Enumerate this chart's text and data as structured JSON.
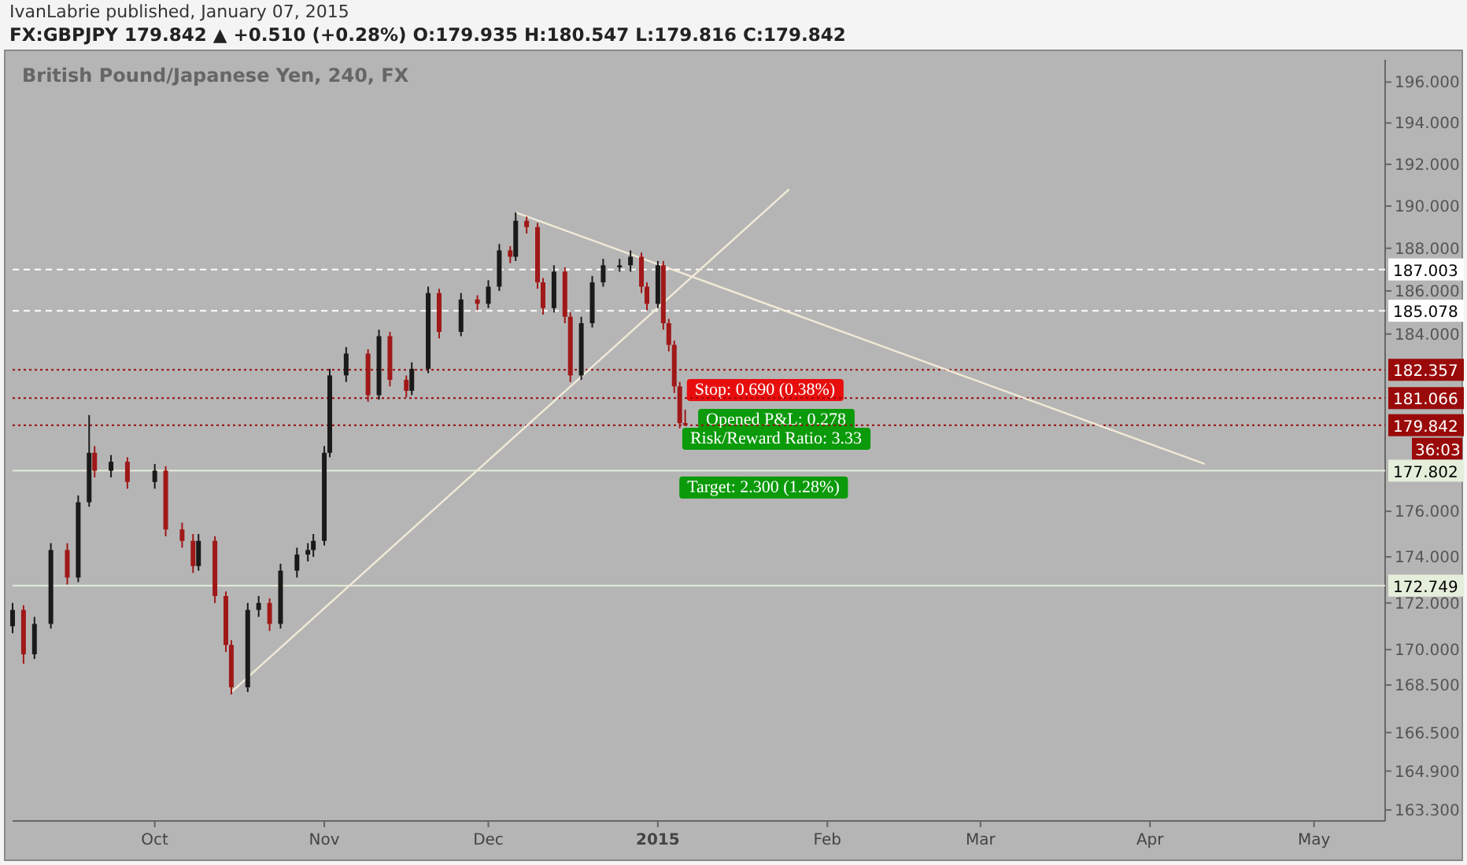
{
  "chart_data": {
    "type": "candlestick",
    "title": "British Pound/Japanese Yen, 240, FX",
    "subtitle": "FX:GBPJPY 179.842 ▲ +0.510 (+0.28%) O:179.935 H:180.547 L:179.816 C:179.842",
    "annotations": [
      "IvanLabrie published, January 07, 2015",
      "Stop: 0.690 (0.38%)",
      "Opened P&L: 0.278",
      "Risk/Reward Ratio: 3.33",
      "Target: 2.300 (1.28%)"
    ],
    "x": [
      "2014-09-05",
      "2014-09-07",
      "2014-09-09",
      "2014-09-12",
      "2014-09-15",
      "2014-09-17",
      "2014-09-19",
      "2014-09-20",
      "2014-09-23",
      "2014-09-26",
      "2014-10-01",
      "2014-10-03",
      "2014-10-06",
      "2014-10-08",
      "2014-10-09",
      "2014-10-12",
      "2014-10-14",
      "2014-10-15",
      "2014-10-18",
      "2014-10-20",
      "2014-10-22",
      "2014-10-24",
      "2014-10-27",
      "2014-10-29",
      "2014-10-30",
      "2014-11-01",
      "2014-11-02",
      "2014-11-05",
      "2014-11-09",
      "2014-11-11",
      "2014-11-13",
      "2014-11-16",
      "2014-11-17",
      "2014-11-20",
      "2014-11-22",
      "2014-11-26",
      "2014-11-29",
      "2014-12-01",
      "2014-12-03",
      "2014-12-05",
      "2014-12-06",
      "2014-12-08",
      "2014-12-10",
      "2014-12-11",
      "2014-12-13",
      "2014-12-15",
      "2014-12-16",
      "2014-12-18",
      "2014-12-20",
      "2014-12-22",
      "2014-12-25",
      "2014-12-27",
      "2014-12-29",
      "2014-12-30",
      "2015-01-01",
      "2015-01-02",
      "2015-01-03",
      "2015-01-04",
      "2015-01-05",
      "2015-01-06"
    ],
    "ohlc": [
      [
        171.0,
        172.0,
        170.7,
        171.7
      ],
      [
        171.7,
        171.9,
        169.4,
        169.8
      ],
      [
        169.8,
        171.4,
        169.6,
        171.1
      ],
      [
        171.1,
        174.6,
        170.9,
        174.3
      ],
      [
        174.3,
        174.6,
        172.8,
        173.1
      ],
      [
        173.1,
        176.7,
        172.9,
        176.4
      ],
      [
        176.4,
        180.3,
        176.2,
        178.6
      ],
      [
        178.6,
        178.9,
        177.5,
        177.8
      ],
      [
        177.8,
        178.5,
        177.5,
        178.2
      ],
      [
        178.2,
        178.4,
        177.0,
        177.3
      ],
      [
        177.3,
        178.1,
        177.0,
        177.8
      ],
      [
        177.8,
        178.0,
        174.9,
        175.2
      ],
      [
        175.2,
        175.5,
        174.4,
        174.7
      ],
      [
        174.7,
        175.0,
        173.3,
        173.6
      ],
      [
        173.6,
        175.0,
        173.4,
        174.7
      ],
      [
        174.7,
        174.9,
        172.0,
        172.3
      ],
      [
        172.3,
        172.5,
        169.9,
        170.2
      ],
      [
        170.2,
        170.4,
        168.1,
        168.4
      ],
      [
        168.4,
        172.0,
        168.2,
        171.7
      ],
      [
        171.7,
        172.3,
        171.4,
        172.0
      ],
      [
        172.0,
        172.2,
        170.8,
        171.1
      ],
      [
        171.1,
        173.7,
        170.9,
        173.4
      ],
      [
        173.4,
        174.4,
        173.1,
        174.1
      ],
      [
        174.1,
        174.6,
        173.8,
        174.3
      ],
      [
        174.3,
        175.0,
        174.0,
        174.7
      ],
      [
        174.7,
        178.9,
        174.5,
        178.6
      ],
      [
        178.6,
        182.4,
        178.4,
        182.1
      ],
      [
        182.1,
        183.4,
        181.8,
        183.1
      ],
      [
        183.1,
        183.3,
        180.9,
        181.2
      ],
      [
        181.2,
        184.2,
        181.0,
        183.9
      ],
      [
        183.9,
        184.1,
        181.6,
        181.9
      ],
      [
        181.9,
        182.1,
        181.1,
        181.4
      ],
      [
        181.4,
        182.7,
        181.2,
        182.4
      ],
      [
        182.4,
        186.2,
        182.2,
        185.9
      ],
      [
        185.9,
        186.1,
        183.8,
        184.1
      ],
      [
        184.1,
        185.9,
        183.9,
        185.6
      ],
      [
        185.6,
        185.8,
        185.1,
        185.4
      ],
      [
        185.4,
        186.5,
        185.2,
        186.2
      ],
      [
        186.2,
        188.2,
        186.0,
        187.9
      ],
      [
        187.9,
        188.1,
        187.3,
        187.6
      ],
      [
        187.6,
        189.7,
        187.4,
        189.3
      ],
      [
        189.3,
        189.5,
        188.7,
        189.0
      ],
      [
        189.0,
        189.2,
        186.1,
        186.4
      ],
      [
        186.4,
        186.6,
        184.9,
        185.2
      ],
      [
        185.2,
        187.2,
        185.0,
        186.9
      ],
      [
        186.9,
        187.1,
        184.5,
        184.8
      ],
      [
        184.8,
        185.0,
        181.8,
        182.1
      ],
      [
        182.1,
        184.8,
        181.9,
        184.5
      ],
      [
        184.5,
        186.7,
        184.3,
        186.4
      ],
      [
        186.4,
        187.5,
        186.2,
        187.2
      ],
      [
        187.1,
        187.5,
        186.9,
        187.2
      ],
      [
        187.2,
        187.9,
        186.9,
        187.6
      ],
      [
        187.6,
        187.8,
        185.9,
        186.2
      ],
      [
        186.2,
        186.4,
        185.1,
        185.4
      ],
      [
        185.4,
        187.4,
        185.2,
        187.2
      ],
      [
        187.2,
        187.4,
        184.2,
        184.5
      ],
      [
        184.5,
        184.7,
        183.2,
        183.5
      ],
      [
        183.5,
        183.7,
        181.3,
        181.6
      ],
      [
        181.6,
        181.8,
        179.7,
        179.935
      ],
      [
        179.935,
        180.547,
        179.816,
        179.842
      ]
    ],
    "colors": [
      "#1a1a1a",
      "#a01818",
      "#1a1a1a",
      "#1a1a1a",
      "#a01818",
      "#1a1a1a",
      "#1a1a1a",
      "#a01818",
      "#1a1a1a",
      "#a01818",
      "#1a1a1a",
      "#a01818",
      "#a01818",
      "#a01818",
      "#1a1a1a",
      "#a01818",
      "#a01818",
      "#a01818",
      "#1a1a1a",
      "#1a1a1a",
      "#a01818",
      "#1a1a1a",
      "#1a1a1a",
      "#1a1a1a",
      "#1a1a1a",
      "#1a1a1a",
      "#1a1a1a",
      "#1a1a1a",
      "#a01818",
      "#1a1a1a",
      "#a01818",
      "#a01818",
      "#1a1a1a",
      "#1a1a1a",
      "#a01818",
      "#1a1a1a",
      "#a01818",
      "#1a1a1a",
      "#1a1a1a",
      "#a01818",
      "#1a1a1a",
      "#a01818",
      "#a01818",
      "#a01818",
      "#1a1a1a",
      "#a01818",
      "#a01818",
      "#1a1a1a",
      "#1a1a1a",
      "#1a1a1a",
      "#1a1a1a",
      "#1a1a1a",
      "#a01818",
      "#a01818",
      "#1a1a1a",
      "#a01818",
      "#a01818",
      "#a01818",
      "#a01818",
      "#a01818"
    ],
    "series": [
      {
        "type": "line",
        "color": "#f2ead8",
        "x": [
          "2014-12-06",
          "2015-04-11"
        ],
        "values": [
          189.7,
          178.1
        ]
      },
      {
        "type": "line",
        "color": "#f2ead8",
        "x": [
          "2014-10-15",
          "2015-01-25"
        ],
        "values": [
          168.2,
          190.8
        ]
      }
    ],
    "ref_lines": [
      {
        "axis": "y",
        "value": 187.003,
        "label": "187.003",
        "color": "#ffffff",
        "line_style": "dashed"
      },
      {
        "axis": "y",
        "value": 185.078,
        "label": "185.078",
        "color": "#ffffff",
        "line_style": "dashed"
      },
      {
        "axis": "y",
        "value": 182.357,
        "label": "182.357",
        "color": "#9a0a0a",
        "line_style": "dotted"
      },
      {
        "axis": "y",
        "value": 181.066,
        "label": "181.066",
        "color": "#9a0a0a",
        "line_style": "dotted"
      },
      {
        "axis": "y",
        "value": 179.842,
        "label": "179.842\n36:03",
        "color": "#9a0a0a",
        "line_style": "dotted"
      },
      {
        "axis": "y",
        "value": 177.802,
        "label": "177.802",
        "color": "#e4eedb",
        "line_style": "solid"
      },
      {
        "axis": "y",
        "value": 172.749,
        "label": "172.749",
        "color": "#e4eedb",
        "line_style": "solid"
      }
    ],
    "log": true,
    "xlim": [
      "2014-09-05",
      "2015-05-14"
    ],
    "xticks": [
      {
        "value": "2014-10-01",
        "label": "Oct"
      },
      {
        "value": "2014-11-01",
        "label": "Nov"
      },
      {
        "value": "2014-12-01",
        "label": "Dec"
      },
      {
        "value": "2015-01-01",
        "label": "2015"
      },
      {
        "value": "2015-02-01",
        "label": "Feb"
      },
      {
        "value": "2015-03-01",
        "label": "Mar"
      },
      {
        "value": "2015-04-01",
        "label": "Apr"
      },
      {
        "value": "2015-05-01",
        "label": "May"
      }
    ],
    "ylim": [
      162.85,
      197.1
    ],
    "yticks": [
      {
        "value": 163.3,
        "label": "163.300"
      },
      {
        "value": 164.9,
        "label": "164.900"
      },
      {
        "value": 166.5,
        "label": "166.500"
      },
      {
        "value": 168.5,
        "label": "168.500"
      },
      {
        "value": 170,
        "label": "170.000"
      },
      {
        "value": 172,
        "label": "172.000"
      },
      {
        "value": 174,
        "label": "174.000"
      },
      {
        "value": 176,
        "label": "176.000"
      },
      {
        "value": 184,
        "label": "184.000"
      },
      {
        "value": 186,
        "label": "186.000"
      },
      {
        "value": 188,
        "label": "188.000"
      },
      {
        "value": 190,
        "label": "190.000"
      },
      {
        "value": 192,
        "label": "192.000"
      },
      {
        "value": 194,
        "label": "194.000"
      },
      {
        "value": 196,
        "label": "196.000"
      }
    ],
    "grid": false
  }
}
